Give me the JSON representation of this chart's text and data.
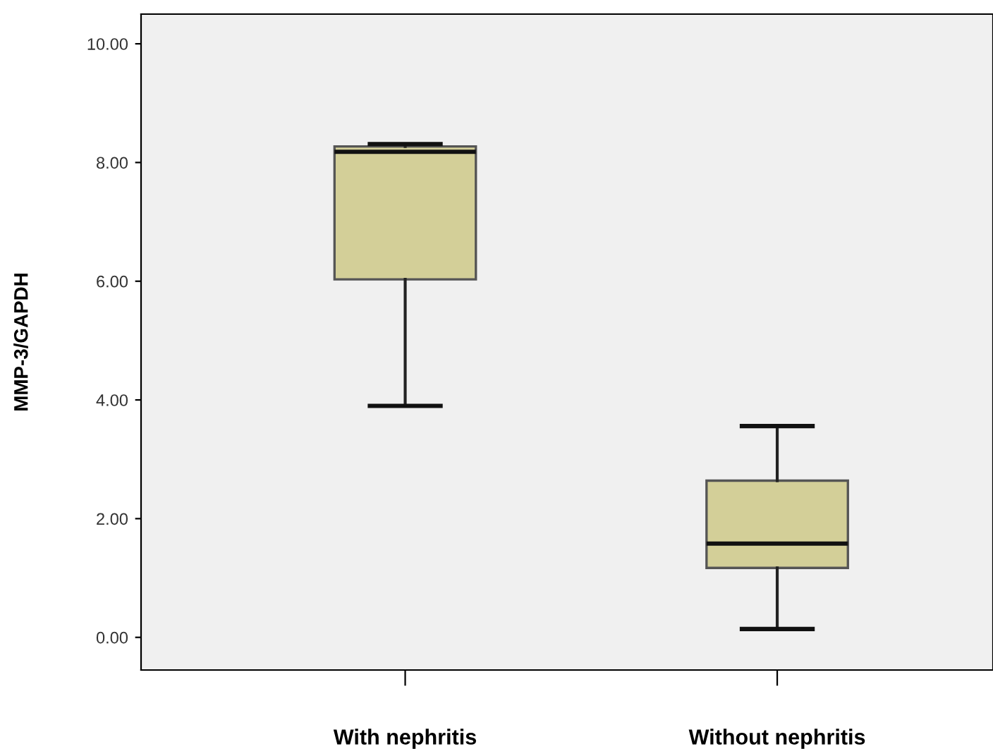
{
  "chart_data": {
    "type": "box",
    "ylabel": "MMP-3/GAPDH",
    "categories": [
      "With nephritis",
      "Without nephritis"
    ],
    "boxes": [
      {
        "low": 3.9,
        "q1": 6.03,
        "median": 8.18,
        "q3": 8.27,
        "high": 8.31
      },
      {
        "low": 0.14,
        "q1": 1.17,
        "median": 1.58,
        "q3": 2.64,
        "high": 3.56
      }
    ],
    "color": "#d3cf98",
    "ylim": [
      -0.55,
      10.5
    ],
    "yticks": [
      {
        "value": 0,
        "label": "0.00"
      },
      {
        "value": 2,
        "label": "2.00"
      },
      {
        "value": 4,
        "label": "4.00"
      },
      {
        "value": 6,
        "label": "6.00"
      },
      {
        "value": 8,
        "label": "8.00"
      },
      {
        "value": 10,
        "label": "10.00"
      }
    ],
    "grid": false
  }
}
